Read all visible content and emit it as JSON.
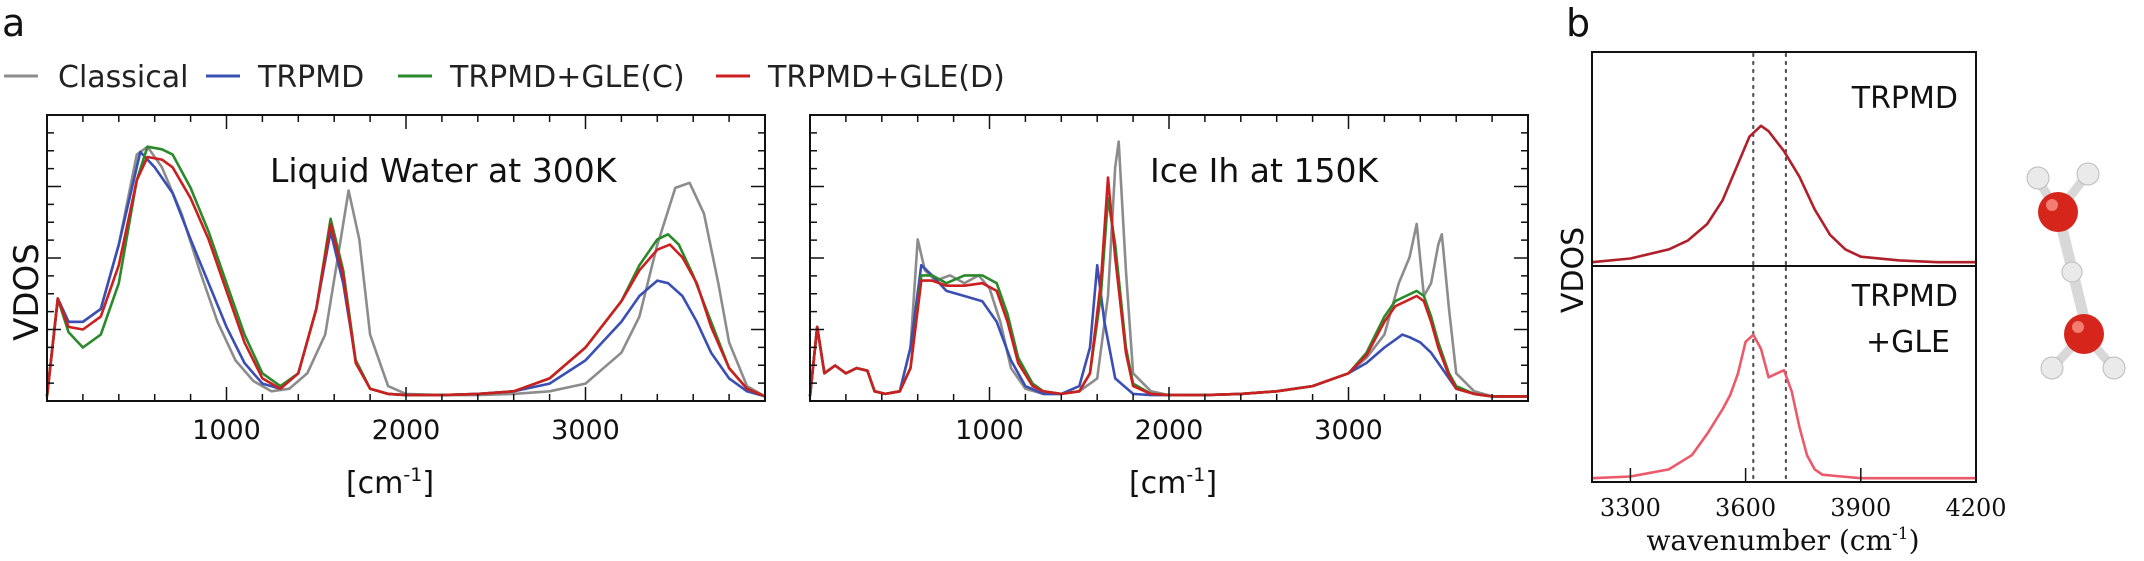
{
  "chart_data": [
    {
      "type": "line",
      "panel_label": "a",
      "title": "Liquid Water at 300K",
      "xlabel": "[cm",
      "xlabel_sup": "-1",
      "xlabel_end": "]",
      "ylabel": "VDOS",
      "xlim": [
        0,
        4000
      ],
      "ylim": [
        0,
        1
      ],
      "x_ticks": [
        1000,
        2000,
        3000
      ],
      "tick_labels": [
        "1000",
        "2000",
        "3000"
      ],
      "series": [
        {
          "name": "Classical",
          "color": "#8c8c8c",
          "x": [
            0,
            60,
            120,
            200,
            300,
            400,
            500,
            560,
            640,
            750,
            850,
            950,
            1050,
            1150,
            1250,
            1350,
            1450,
            1550,
            1620,
            1680,
            1740,
            1800,
            1900,
            2000,
            2200,
            2400,
            2600,
            2800,
            3000,
            3200,
            3300,
            3400,
            3500,
            3580,
            3660,
            3740,
            3800,
            3900,
            4000
          ],
          "y": [
            0.01,
            0.39,
            0.3,
            0.3,
            0.35,
            0.6,
            0.95,
            0.98,
            0.9,
            0.72,
            0.5,
            0.3,
            0.15,
            0.07,
            0.03,
            0.04,
            0.1,
            0.25,
            0.55,
            0.81,
            0.62,
            0.25,
            0.05,
            0.02,
            0.015,
            0.015,
            0.02,
            0.03,
            0.06,
            0.18,
            0.32,
            0.6,
            0.82,
            0.84,
            0.72,
            0.45,
            0.22,
            0.05,
            0.01
          ]
        },
        {
          "name": "TRPMD",
          "color": "#3a4fb4",
          "x": [
            0,
            60,
            120,
            200,
            300,
            400,
            520,
            600,
            700,
            800,
            900,
            1000,
            1100,
            1200,
            1300,
            1400,
            1500,
            1580,
            1650,
            1720,
            1800,
            1900,
            2000,
            2200,
            2400,
            2600,
            2800,
            3000,
            3200,
            3300,
            3400,
            3460,
            3540,
            3620,
            3700,
            3800,
            3900,
            4000
          ],
          "y": [
            0.01,
            0.39,
            0.3,
            0.3,
            0.35,
            0.6,
            0.96,
            0.9,
            0.8,
            0.62,
            0.45,
            0.28,
            0.14,
            0.06,
            0.04,
            0.1,
            0.35,
            0.65,
            0.45,
            0.15,
            0.04,
            0.02,
            0.015,
            0.015,
            0.02,
            0.03,
            0.06,
            0.15,
            0.3,
            0.4,
            0.46,
            0.45,
            0.4,
            0.3,
            0.18,
            0.08,
            0.03,
            0.01
          ]
        },
        {
          "name": "TRPMD+GLE(C)",
          "color": "#2a8a2a",
          "x": [
            0,
            60,
            120,
            200,
            300,
            400,
            500,
            560,
            640,
            700,
            800,
            900,
            1000,
            1100,
            1200,
            1300,
            1400,
            1500,
            1580,
            1650,
            1720,
            1800,
            1900,
            2000,
            2200,
            2400,
            2600,
            2800,
            3000,
            3200,
            3300,
            3400,
            3460,
            3520,
            3600,
            3700,
            3800,
            3900,
            4000
          ],
          "y": [
            0.01,
            0.39,
            0.26,
            0.2,
            0.25,
            0.45,
            0.85,
            0.98,
            0.97,
            0.95,
            0.82,
            0.65,
            0.45,
            0.25,
            0.1,
            0.05,
            0.1,
            0.35,
            0.7,
            0.5,
            0.15,
            0.04,
            0.02,
            0.015,
            0.015,
            0.02,
            0.03,
            0.08,
            0.2,
            0.38,
            0.52,
            0.62,
            0.64,
            0.6,
            0.48,
            0.3,
            0.12,
            0.04,
            0.01
          ]
        },
        {
          "name": "TRPMD+GLE(D)",
          "color": "#cc1f1f",
          "x": [
            0,
            60,
            120,
            200,
            300,
            400,
            500,
            560,
            640,
            700,
            800,
            900,
            1000,
            1100,
            1200,
            1300,
            1400,
            1500,
            1580,
            1650,
            1720,
            1800,
            1900,
            2000,
            2200,
            2400,
            2600,
            2800,
            3000,
            3200,
            3300,
            3400,
            3470,
            3540,
            3620,
            3700,
            3800,
            3900,
            4000
          ],
          "y": [
            0.01,
            0.39,
            0.28,
            0.27,
            0.32,
            0.52,
            0.85,
            0.94,
            0.93,
            0.9,
            0.78,
            0.62,
            0.42,
            0.22,
            0.08,
            0.04,
            0.1,
            0.35,
            0.68,
            0.48,
            0.14,
            0.04,
            0.02,
            0.015,
            0.015,
            0.02,
            0.03,
            0.08,
            0.2,
            0.38,
            0.5,
            0.58,
            0.6,
            0.55,
            0.45,
            0.28,
            0.12,
            0.04,
            0.01
          ]
        }
      ]
    },
    {
      "type": "line",
      "title": "Ice Ih at 150K",
      "xlabel": "[cm",
      "xlabel_sup": "-1",
      "xlabel_end": "]",
      "xlim": [
        0,
        4000
      ],
      "ylim": [
        0,
        1
      ],
      "x_ticks": [
        1000,
        2000,
        3000
      ],
      "tick_labels": [
        "1000",
        "2000",
        "3000"
      ],
      "series": [
        {
          "name": "Classical",
          "color": "#8c8c8c",
          "x": [
            0,
            40,
            80,
            140,
            200,
            260,
            320,
            360,
            420,
            500,
            560,
            600,
            640,
            700,
            780,
            860,
            940,
            1000,
            1060,
            1120,
            1200,
            1300,
            1400,
            1500,
            1600,
            1660,
            1700,
            1720,
            1760,
            1800,
            1900,
            2000,
            2200,
            2400,
            2600,
            2800,
            3000,
            3100,
            3200,
            3280,
            3340,
            3380,
            3420,
            3460,
            3500,
            3520,
            3560,
            3600,
            3700,
            3800,
            4000
          ],
          "y": [
            0.01,
            0.28,
            0.1,
            0.13,
            0.1,
            0.12,
            0.11,
            0.03,
            0.02,
            0.03,
            0.2,
            0.62,
            0.5,
            0.46,
            0.48,
            0.45,
            0.48,
            0.43,
            0.3,
            0.12,
            0.04,
            0.02,
            0.02,
            0.03,
            0.08,
            0.4,
            0.9,
            1.0,
            0.5,
            0.1,
            0.03,
            0.015,
            0.015,
            0.02,
            0.03,
            0.05,
            0.1,
            0.16,
            0.25,
            0.45,
            0.55,
            0.68,
            0.4,
            0.45,
            0.6,
            0.64,
            0.35,
            0.1,
            0.03,
            0.01,
            0.01
          ]
        },
        {
          "name": "TRPMD",
          "color": "#3a4fb4",
          "x": [
            0,
            40,
            80,
            140,
            200,
            260,
            320,
            360,
            420,
            500,
            560,
            620,
            680,
            760,
            860,
            960,
            1040,
            1120,
            1200,
            1300,
            1400,
            1500,
            1560,
            1600,
            1640,
            1700,
            1800,
            1900,
            2000,
            2200,
            2400,
            2600,
            2800,
            3000,
            3100,
            3200,
            3260,
            3300,
            3340,
            3400,
            3460,
            3500,
            3560,
            3600,
            3700,
            3800,
            4000
          ],
          "y": [
            0.01,
            0.28,
            0.1,
            0.13,
            0.1,
            0.12,
            0.11,
            0.03,
            0.02,
            0.03,
            0.2,
            0.52,
            0.48,
            0.42,
            0.4,
            0.38,
            0.3,
            0.15,
            0.05,
            0.02,
            0.02,
            0.05,
            0.2,
            0.52,
            0.3,
            0.08,
            0.02,
            0.015,
            0.015,
            0.015,
            0.02,
            0.03,
            0.05,
            0.1,
            0.14,
            0.2,
            0.23,
            0.25,
            0.24,
            0.22,
            0.18,
            0.14,
            0.08,
            0.04,
            0.02,
            0.01,
            0.01
          ]
        },
        {
          "name": "TRPMD+GLE(C)",
          "color": "#2a8a2a",
          "x": [
            0,
            40,
            80,
            140,
            200,
            260,
            320,
            360,
            420,
            500,
            560,
            620,
            680,
            760,
            860,
            960,
            1040,
            1100,
            1160,
            1240,
            1300,
            1400,
            1500,
            1560,
            1620,
            1660,
            1700,
            1760,
            1800,
            1900,
            2000,
            2200,
            2400,
            2600,
            2800,
            3000,
            3100,
            3200,
            3260,
            3320,
            3380,
            3420,
            3460,
            3500,
            3560,
            3600,
            3700,
            3800,
            4000
          ],
          "y": [
            0.01,
            0.28,
            0.1,
            0.13,
            0.1,
            0.12,
            0.11,
            0.03,
            0.02,
            0.03,
            0.12,
            0.48,
            0.48,
            0.45,
            0.48,
            0.48,
            0.45,
            0.33,
            0.16,
            0.06,
            0.03,
            0.02,
            0.03,
            0.1,
            0.4,
            0.78,
            0.6,
            0.2,
            0.06,
            0.02,
            0.015,
            0.015,
            0.02,
            0.03,
            0.05,
            0.1,
            0.18,
            0.32,
            0.38,
            0.4,
            0.42,
            0.4,
            0.32,
            0.22,
            0.1,
            0.05,
            0.02,
            0.01,
            0.01
          ]
        },
        {
          "name": "TRPMD+GLE(D)",
          "color": "#cc1f1f",
          "x": [
            0,
            40,
            80,
            140,
            200,
            260,
            320,
            360,
            420,
            500,
            560,
            620,
            680,
            760,
            860,
            960,
            1040,
            1100,
            1160,
            1240,
            1300,
            1400,
            1500,
            1560,
            1620,
            1660,
            1700,
            1760,
            1800,
            1900,
            2000,
            2200,
            2400,
            2600,
            2800,
            3000,
            3100,
            3200,
            3260,
            3320,
            3380,
            3420,
            3460,
            3500,
            3560,
            3600,
            3700,
            3800,
            4000
          ],
          "y": [
            0.01,
            0.28,
            0.1,
            0.13,
            0.1,
            0.12,
            0.11,
            0.03,
            0.02,
            0.03,
            0.12,
            0.46,
            0.46,
            0.44,
            0.44,
            0.45,
            0.42,
            0.3,
            0.14,
            0.05,
            0.03,
            0.02,
            0.03,
            0.1,
            0.45,
            0.86,
            0.55,
            0.18,
            0.05,
            0.02,
            0.015,
            0.015,
            0.02,
            0.03,
            0.05,
            0.1,
            0.17,
            0.3,
            0.36,
            0.38,
            0.4,
            0.38,
            0.3,
            0.2,
            0.09,
            0.04,
            0.02,
            0.01,
            0.01
          ]
        }
      ]
    },
    {
      "type": "line",
      "panel_label": "b",
      "annotation": "TRPMD",
      "ylabel": "VDOS",
      "xlim": [
        3200,
        4200
      ],
      "ylim": [
        0,
        1
      ],
      "vlines": [
        3620,
        3705
      ],
      "series": [
        {
          "color": "#b0202a",
          "x": [
            3200,
            3300,
            3400,
            3450,
            3500,
            3540,
            3580,
            3610,
            3640,
            3660,
            3700,
            3740,
            3780,
            3820,
            3860,
            3900,
            4000,
            4100,
            4200
          ],
          "y": [
            0.01,
            0.03,
            0.08,
            0.13,
            0.22,
            0.35,
            0.55,
            0.7,
            0.76,
            0.73,
            0.62,
            0.48,
            0.3,
            0.16,
            0.08,
            0.04,
            0.02,
            0.01,
            0.01
          ]
        }
      ]
    },
    {
      "type": "line",
      "annotation_lines": [
        "TRPMD",
        "+GLE"
      ],
      "xlabel": "wavenumber (cm",
      "xlabel_sup": "-1",
      "xlabel_end": ")",
      "xlim": [
        3200,
        4200
      ],
      "ylim": [
        0,
        1
      ],
      "x_ticks": [
        3300,
        3600,
        3900,
        4200
      ],
      "tick_labels": [
        "3300",
        "3600",
        "3900",
        "4200"
      ],
      "vlines": [
        3620,
        3705
      ],
      "series": [
        {
          "color": "#ea5a6a",
          "x": [
            3200,
            3300,
            3400,
            3460,
            3500,
            3540,
            3560,
            3580,
            3600,
            3620,
            3640,
            3660,
            3680,
            3700,
            3720,
            3740,
            3760,
            3780,
            3800,
            3850,
            3900,
            4000,
            4200
          ],
          "y": [
            0.01,
            0.02,
            0.06,
            0.14,
            0.26,
            0.4,
            0.48,
            0.6,
            0.78,
            0.82,
            0.74,
            0.58,
            0.6,
            0.62,
            0.5,
            0.3,
            0.14,
            0.06,
            0.03,
            0.02,
            0.01,
            0.01,
            0.01
          ]
        }
      ]
    }
  ]
}
